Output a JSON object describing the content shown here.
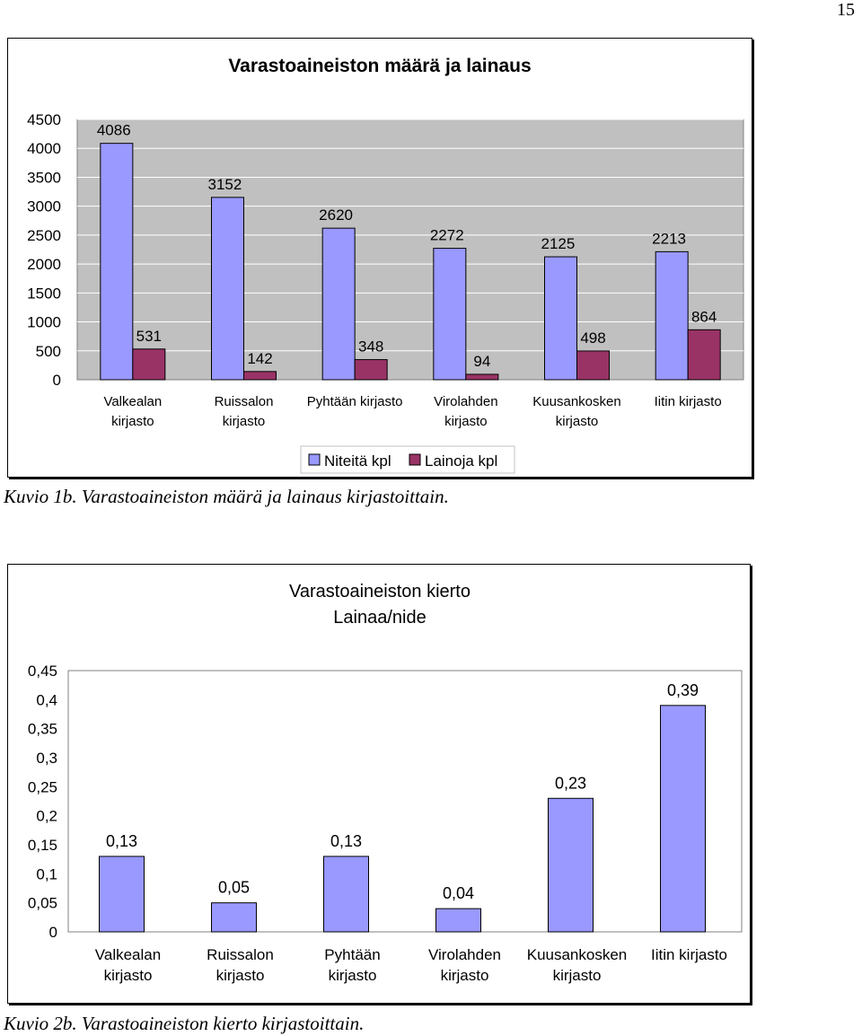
{
  "page_number": "15",
  "captions": {
    "figure1": "Kuvio 1b. Varastoaineiston määrä ja lainaus kirjastoittain.",
    "figure2": "Kuvio 2b. Varastoaineiston kierto kirjastoittain."
  },
  "colors": {
    "series1": "#9999ff",
    "series2": "#993366",
    "plot_bg": "#c0c0c0",
    "gridline": "#ffffff"
  },
  "chart_data": [
    {
      "type": "bar",
      "title": "Varastoaineiston määrä ja lainaus",
      "categories": [
        [
          "Valkealan",
          "kirjasto"
        ],
        [
          "Ruissalon",
          "kirjasto"
        ],
        [
          "Pyhtään kirjasto"
        ],
        [
          "Virolahden",
          "kirjasto"
        ],
        [
          "Kuusankosken",
          "kirjasto"
        ],
        [
          "Iitin kirjasto"
        ]
      ],
      "series": [
        {
          "name": "Niteitä kpl",
          "values": [
            4086,
            3152,
            2620,
            2272,
            2125,
            2213
          ]
        },
        {
          "name": "Lainoja kpl",
          "values": [
            531,
            142,
            348,
            94,
            498,
            864
          ]
        }
      ],
      "ylim": [
        0,
        4500
      ],
      "yticks": [
        "0",
        "500",
        "1000",
        "1500",
        "2000",
        "2500",
        "3000",
        "3500",
        "4000",
        "4500"
      ],
      "grid": true,
      "legend": "bottom"
    },
    {
      "type": "bar",
      "title": [
        "Varastoaineiston kierto",
        "Lainaa/nide"
      ],
      "categories": [
        [
          "Valkealan",
          "kirjasto"
        ],
        [
          "Ruissalon",
          "kirjasto"
        ],
        [
          "Pyhtään",
          "kirjasto"
        ],
        [
          "Virolahden",
          "kirjasto"
        ],
        [
          "Kuusankosken",
          "kirjasto"
        ],
        [
          "Iitin kirjasto"
        ]
      ],
      "values": [
        0.13,
        0.05,
        0.13,
        0.04,
        0.23,
        0.39
      ],
      "value_labels": [
        "0,13",
        "0,05",
        "0,13",
        "0,04",
        "0,23",
        "0,39"
      ],
      "ylim": [
        0,
        0.45
      ],
      "yticks": [
        "0",
        "0,05",
        "0,1",
        "0,15",
        "0,2",
        "0,25",
        "0,3",
        "0,35",
        "0,4",
        "0,45"
      ],
      "grid": false,
      "legend": "none"
    }
  ]
}
